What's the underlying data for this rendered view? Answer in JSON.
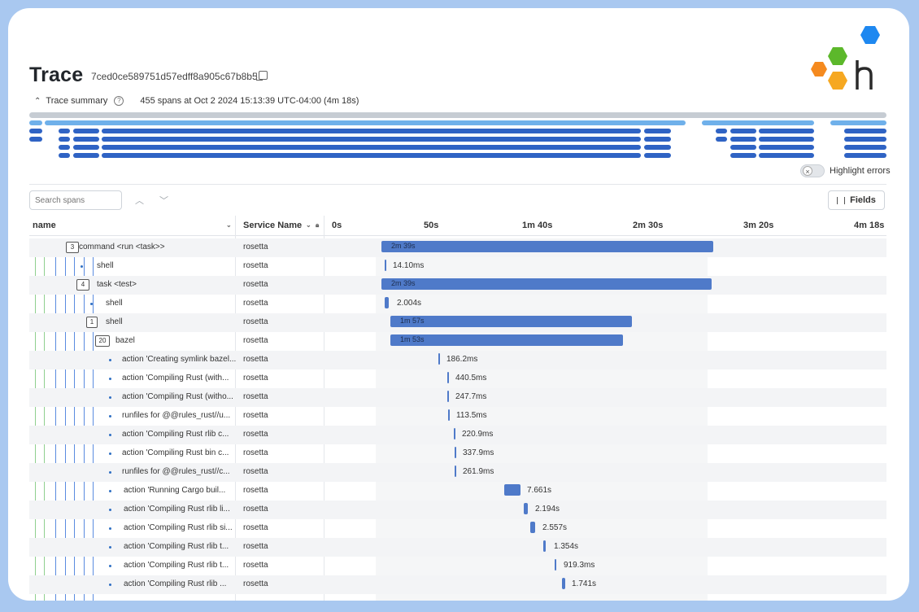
{
  "header": {
    "title": "Trace",
    "trace_id": "7ced0ce589751d57edff8a905c67b8b5"
  },
  "summary": {
    "label": "Trace summary",
    "stats": "455 spans at Oct 2 2024 15:13:39 UTC-04:00 (4m 18s)"
  },
  "controls": {
    "highlight_errors": "Highlight errors",
    "search_placeholder": "Search spans",
    "fields": "Fields",
    "toggle_glyph": "×"
  },
  "columns": {
    "name": "name",
    "service": "Service Name",
    "ticks": [
      "0s",
      "50s",
      "1m 40s",
      "2m 30s",
      "3m 20s",
      "4m 18s"
    ]
  },
  "spans": [
    {
      "badge": "3",
      "name": "command <run <task>>",
      "service": "rosetta",
      "duration": "2m 39s"
    },
    {
      "badge": "",
      "name": "shell",
      "service": "rosetta",
      "duration": "14.10ms"
    },
    {
      "badge": "4",
      "name": "task <test>",
      "service": "rosetta",
      "duration": "2m 39s"
    },
    {
      "badge": "",
      "name": "shell",
      "service": "rosetta",
      "duration": "2.004s"
    },
    {
      "badge": "1",
      "name": "shell",
      "service": "rosetta",
      "duration": "1m 57s"
    },
    {
      "badge": "20",
      "name": "bazel",
      "service": "rosetta",
      "duration": "1m 53s"
    },
    {
      "badge": "",
      "name": "action 'Creating symlink bazel...",
      "service": "rosetta",
      "duration": "186.2ms"
    },
    {
      "badge": "",
      "name": "action 'Compiling Rust (with...",
      "service": "rosetta",
      "duration": "440.5ms"
    },
    {
      "badge": "",
      "name": "action 'Compiling Rust (witho...",
      "service": "rosetta",
      "duration": "247.7ms"
    },
    {
      "badge": "",
      "name": "runfiles for @@rules_rust//u...",
      "service": "rosetta",
      "duration": "113.5ms"
    },
    {
      "badge": "",
      "name": "action 'Compiling Rust rlib c...",
      "service": "rosetta",
      "duration": "220.9ms"
    },
    {
      "badge": "",
      "name": "action 'Compiling Rust bin c...",
      "service": "rosetta",
      "duration": "337.9ms"
    },
    {
      "badge": "",
      "name": "runfiles for @@rules_rust//c...",
      "service": "rosetta",
      "duration": "261.9ms"
    },
    {
      "badge": "",
      "name": "action 'Running Cargo buil...",
      "service": "rosetta",
      "duration": "7.661s"
    },
    {
      "badge": "",
      "name": "action 'Compiling Rust rlib li...",
      "service": "rosetta",
      "duration": "2.194s"
    },
    {
      "badge": "",
      "name": "action 'Compiling Rust rlib si...",
      "service": "rosetta",
      "duration": "2.557s"
    },
    {
      "badge": "",
      "name": "action 'Compiling Rust rlib t...",
      "service": "rosetta",
      "duration": "1.354s"
    },
    {
      "badge": "",
      "name": "action 'Compiling Rust rlib t...",
      "service": "rosetta",
      "duration": "919.3ms"
    },
    {
      "badge": "",
      "name": "action 'Compiling Rust rlib ...",
      "service": "rosetta",
      "duration": "1.741s"
    }
  ],
  "colors": {
    "bar": "#4f7ac9",
    "minimap_light": "#6fb0ea",
    "minimap_dark": "#2f63c4",
    "logo_blue": "#1e88f0",
    "logo_green": "#5cb82b",
    "logo_orange": "#f58a1f",
    "logo_yellow": "#f6a821"
  }
}
